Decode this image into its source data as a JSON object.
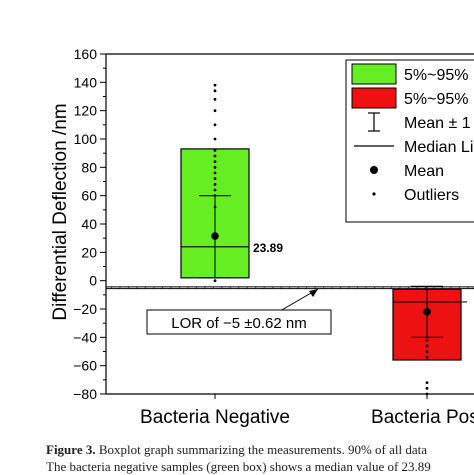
{
  "chart_data": {
    "type": "box",
    "ylabel": "Differential Deflection /nm",
    "ylim": [
      -80,
      160
    ],
    "yticks": [
      -80,
      -60,
      -40,
      -20,
      0,
      20,
      40,
      60,
      80,
      100,
      120,
      140,
      160
    ],
    "ytick_labels": [
      "−80",
      "−60",
      "−40",
      "−20",
      "0",
      "20",
      "40",
      "60",
      "80",
      "100",
      "120",
      "140",
      "160"
    ],
    "grid": false,
    "categories": [
      "Bacteria Negative",
      "Bacteria Posi"
    ],
    "boxes": [
      {
        "category": "Bacteria Negative",
        "color": "#66ee22",
        "q_low": 2,
        "q_high": 93,
        "median": 23.89,
        "median_label": "23.89",
        "mean": 31.5,
        "mean_pm_low": 2,
        "mean_pm_high": 60,
        "outliers": [
          0,
          52,
          60,
          64,
          68,
          72,
          76,
          80,
          84,
          88,
          92,
          100,
          110,
          120,
          128,
          134,
          138
        ]
      },
      {
        "category": "Bacteria Posi",
        "color": "#ee1111",
        "q_low": -56,
        "q_high": -6,
        "median": -15,
        "median_label": "",
        "mean": -22,
        "mean_pm_low": -40,
        "mean_pm_high": -4,
        "outliers": [
          -42,
          -46,
          -50,
          -54,
          -72,
          -76,
          -80
        ]
      }
    ],
    "lor_band": [
      -5.62,
      -4.38
    ],
    "annotation": "LOR of −5 ±0.62 nm",
    "legend": {
      "placement": "top-right",
      "entries": [
        "5%~95%",
        "5%~95%",
        "Mean ± 1",
        "Median Li",
        "Mean",
        "Outliers"
      ]
    }
  },
  "caption": {
    "label": "Figure 3.",
    "line1": " Boxplot graph summarizing the measurements. 90% of all data",
    "line2": "The bacteria negative samples (green box) shows a median value of 23.89"
  },
  "colors": {
    "negative_box": "#66ee22",
    "positive_box": "#ee1111",
    "axis": "#000000"
  }
}
